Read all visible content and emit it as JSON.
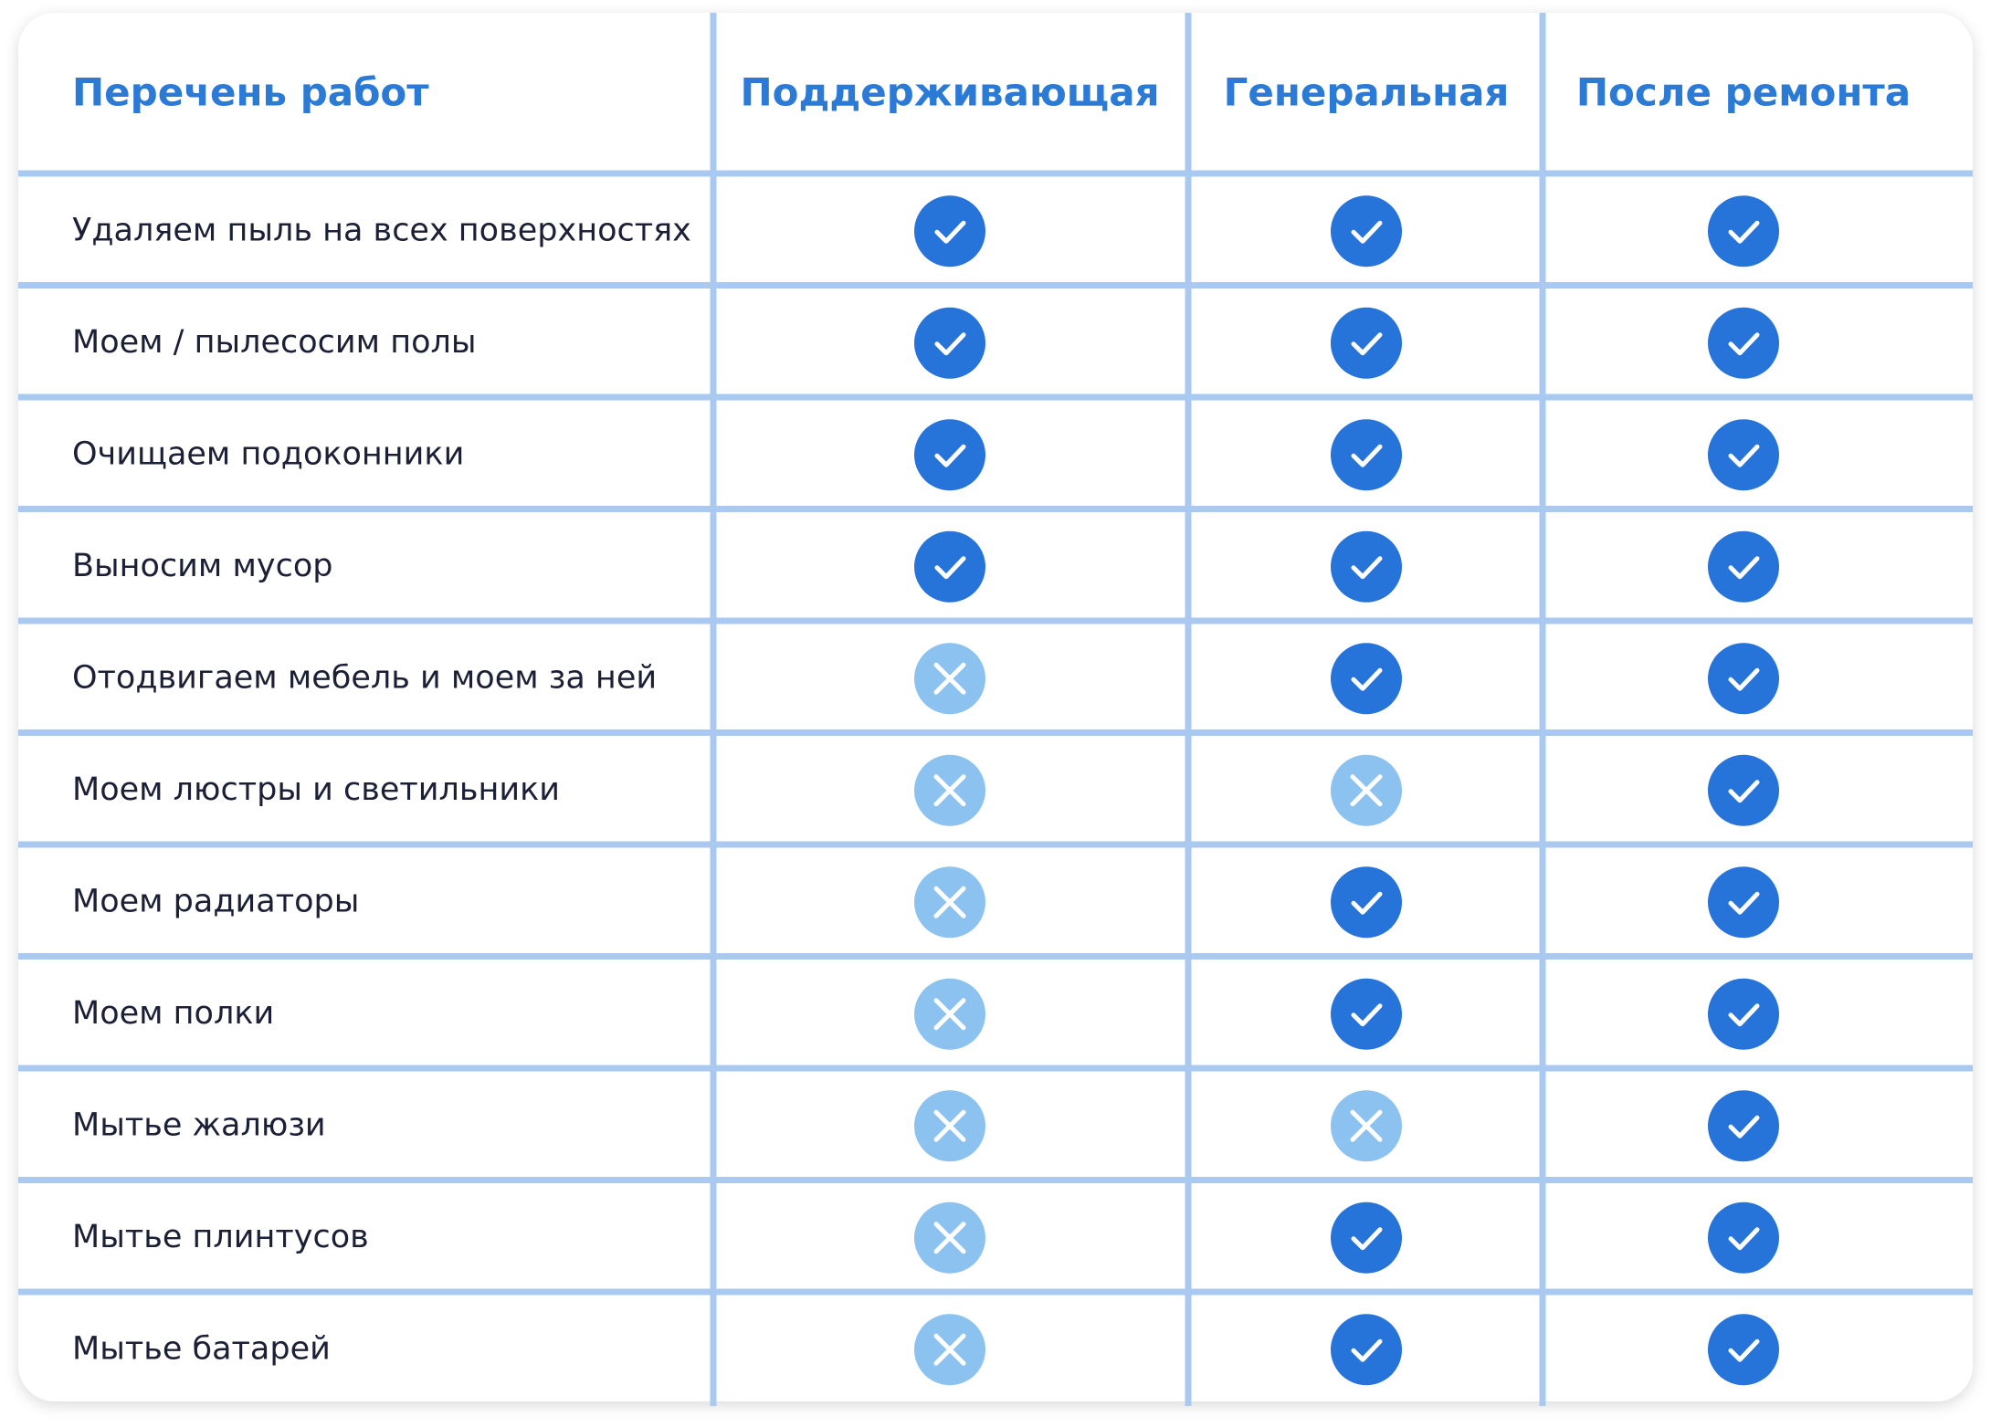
{
  "header": {
    "columns": [
      "Перечень работ",
      "Поддерживающая",
      "Генеральная",
      "После ремонта"
    ]
  },
  "table": {
    "rows": [
      {
        "label": "Удаляем пыль на всех поверхностях",
        "cells": [
          true,
          true,
          true
        ]
      },
      {
        "label": "Моем / пылесосим полы",
        "cells": [
          true,
          true,
          true
        ]
      },
      {
        "label": "Очищаем подоконники",
        "cells": [
          true,
          true,
          true
        ]
      },
      {
        "label": "Выносим мусор",
        "cells": [
          true,
          true,
          true
        ]
      },
      {
        "label": "Отодвигаем мебель и моем за ней",
        "cells": [
          false,
          true,
          true
        ]
      },
      {
        "label": "Моем люстры и светильники",
        "cells": [
          false,
          false,
          true
        ]
      },
      {
        "label": "Моем радиаторы",
        "cells": [
          false,
          true,
          true
        ]
      },
      {
        "label": "Моем полки",
        "cells": [
          false,
          true,
          true
        ]
      },
      {
        "label": "Мытье жалюзи",
        "cells": [
          false,
          false,
          true
        ]
      },
      {
        "label": "Мытье плинтусов",
        "cells": [
          false,
          true,
          true
        ]
      },
      {
        "label": "Мытье батарей",
        "cells": [
          false,
          true,
          true
        ]
      }
    ]
  }
}
